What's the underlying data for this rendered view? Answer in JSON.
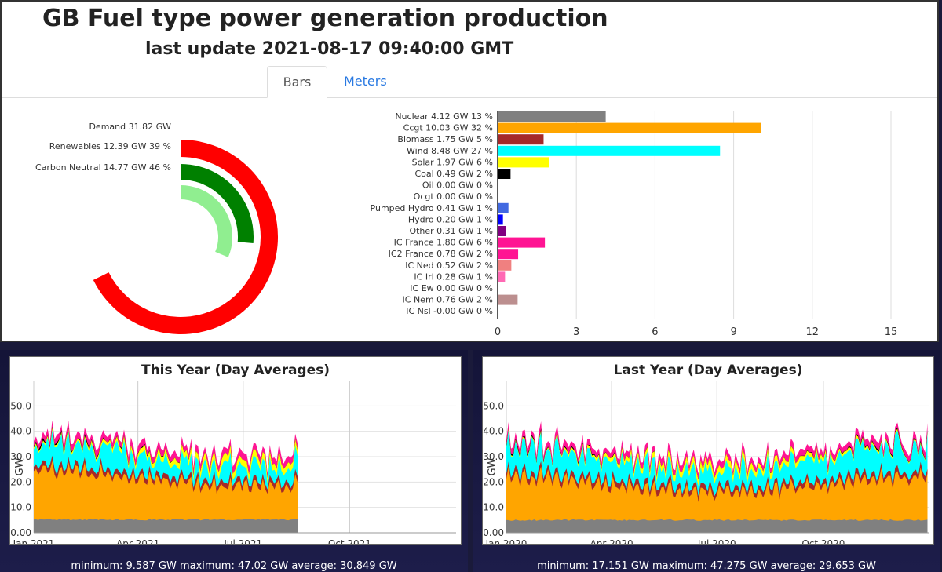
{
  "header": {
    "title": "GB Fuel type power generation production",
    "subtitle": "last update 2021-08-17 09:40:00 GMT"
  },
  "tabs": [
    {
      "label": "Bars",
      "active": true
    },
    {
      "label": "Meters",
      "active": false
    }
  ],
  "colors": {
    "demand": "#ff0000",
    "renewables": "#008000",
    "carbon_neutral": "#90ee90",
    "link": "#2a7ae2"
  },
  "chart_data": [
    {
      "type": "radial-bar",
      "id": "donut",
      "max": 47,
      "items": [
        {
          "label": "Demand 31.82 GW",
          "value": 31.82,
          "color": "#ff0000"
        },
        {
          "label": "Renewables 12.39 GW 39 %",
          "value": 12.39,
          "color": "#008000"
        },
        {
          "label": "Carbon Neutral 14.77 GW 46 %",
          "value": 14.77,
          "color": "#90ee90"
        }
      ]
    },
    {
      "type": "bar",
      "id": "fuel-bars",
      "orientation": "horizontal",
      "xlim": [
        0,
        16
      ],
      "xticks": [
        0,
        3,
        6,
        9,
        12,
        15
      ],
      "bars": [
        {
          "label": "Nuclear 4.12 GW 13 %",
          "value": 4.12,
          "color": "#808080"
        },
        {
          "label": "Ccgt 10.03 GW 32 %",
          "value": 10.03,
          "color": "#ffa500"
        },
        {
          "label": "Biomass 1.75 GW 5 %",
          "value": 1.75,
          "color": "#a52a2a"
        },
        {
          "label": "Wind 8.48 GW 27 %",
          "value": 8.48,
          "color": "#00ffff"
        },
        {
          "label": "Solar 1.97 GW 6 %",
          "value": 1.97,
          "color": "#ffff00"
        },
        {
          "label": "Coal 0.49 GW 2 %",
          "value": 0.49,
          "color": "#000000"
        },
        {
          "label": "Oil 0.00 GW 0 %",
          "value": 0,
          "color": "#444444"
        },
        {
          "label": "Ocgt 0.00 GW 0 %",
          "value": 0,
          "color": "#888888"
        },
        {
          "label": "Pumped Hydro 0.41 GW 1 %",
          "value": 0.41,
          "color": "#4169e1"
        },
        {
          "label": "Hydro 0.20 GW 1 %",
          "value": 0.2,
          "color": "#0000ff"
        },
        {
          "label": "Other 0.31 GW 1 %",
          "value": 0.31,
          "color": "#800080"
        },
        {
          "label": "IC France 1.80 GW 6 %",
          "value": 1.8,
          "color": "#ff1493"
        },
        {
          "label": "IC2 France 0.78 GW 2 %",
          "value": 0.78,
          "color": "#ff1493"
        },
        {
          "label": "IC Ned 0.52 GW 2 %",
          "value": 0.52,
          "color": "#f08080"
        },
        {
          "label": "IC Irl 0.28 GW 1 %",
          "value": 0.28,
          "color": "#ff69b4"
        },
        {
          "label": "IC Ew 0.00 GW 0 %",
          "value": 0,
          "color": "#999999"
        },
        {
          "label": "IC Nem 0.76 GW 2 %",
          "value": 0.76,
          "color": "#bc8f8f"
        },
        {
          "label": "IC Nsl -0.00 GW 0 %",
          "value": 0,
          "color": "#999999"
        }
      ]
    },
    {
      "type": "area",
      "id": "this-year",
      "title": "This Year (Day Averages)",
      "ylabel": "GW",
      "ylim": [
        0,
        60
      ],
      "yticks": [
        "0.00",
        "10.0",
        "20.0",
        "30.0",
        "40.0",
        "50.0"
      ],
      "xlim_days": [
        0,
        365
      ],
      "xticks": [
        {
          "label": "Jan 2021",
          "day": 0
        },
        {
          "label": "Apr 2021",
          "day": 90
        },
        {
          "label": "Jul 2021",
          "day": 181
        },
        {
          "label": "Oct 2021",
          "day": 273
        }
      ],
      "data_days": 229,
      "stack_order": [
        "Nuclear",
        "Ccgt",
        "Biomass",
        "Wind",
        "Solar",
        "Coal",
        "Imports"
      ],
      "stack_colors": [
        "#808080",
        "#ffa500",
        "#a52a2a",
        "#00ffff",
        "#ffff00",
        "#000000",
        "#ff1493"
      ],
      "profile": {
        "nuclear": 5.2,
        "ccgt": 16,
        "biomass": 2,
        "wind": 7,
        "solar": 1.5,
        "coal": 0.5,
        "imports": 2.5
      },
      "seed": 7,
      "stats": "minimum: 9.587 GW maximum: 47.02 GW average: 30.849 GW"
    },
    {
      "type": "area",
      "id": "last-year",
      "title": "Last Year (Day Averages)",
      "ylabel": "GW",
      "ylim": [
        0,
        60
      ],
      "yticks": [
        "0.00",
        "10.0",
        "20.0",
        "30.0",
        "40.0",
        "50.0"
      ],
      "xlim_days": [
        0,
        365
      ],
      "xticks": [
        {
          "label": "Jan 2020",
          "day": 0
        },
        {
          "label": "Apr 2020",
          "day": 91
        },
        {
          "label": "Jul 2020",
          "day": 182
        },
        {
          "label": "Oct 2020",
          "day": 274
        }
      ],
      "data_days": 365,
      "stack_order": [
        "Nuclear",
        "Ccgt",
        "Biomass",
        "Wind",
        "Solar",
        "Coal",
        "Imports"
      ],
      "stack_colors": [
        "#808080",
        "#ffa500",
        "#a52a2a",
        "#00ffff",
        "#ffff00",
        "#000000",
        "#ff1493"
      ],
      "profile": {
        "nuclear": 5.0,
        "ccgt": 14,
        "biomass": 2,
        "wind": 8,
        "solar": 1.2,
        "coal": 0.4,
        "imports": 2.3
      },
      "seed": 13,
      "stats": "minimum: 17.151 GW maximum: 47.275 GW average: 29.653 GW"
    }
  ]
}
